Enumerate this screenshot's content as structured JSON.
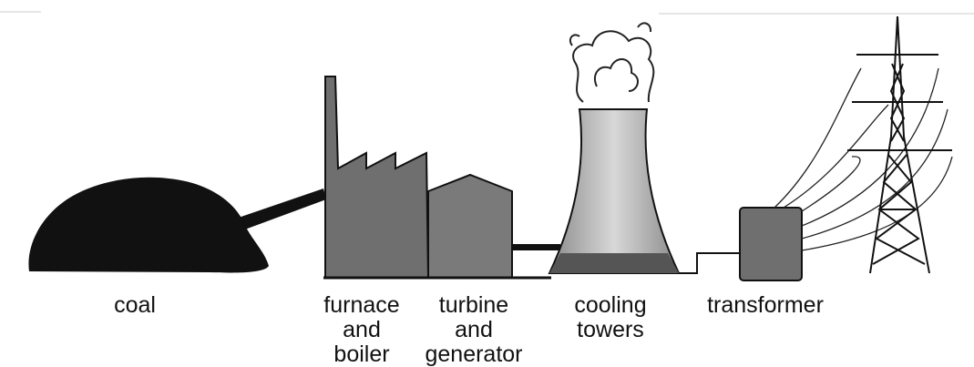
{
  "nodes": [
    {
      "label": [
        "coal"
      ]
    },
    {
      "label": [
        "furnace",
        "and",
        "boiler"
      ]
    },
    {
      "label": [
        "turbine",
        "and",
        "generator"
      ]
    },
    {
      "label": [
        "cooling",
        "towers"
      ]
    },
    {
      "label": [
        "transformer"
      ]
    }
  ]
}
